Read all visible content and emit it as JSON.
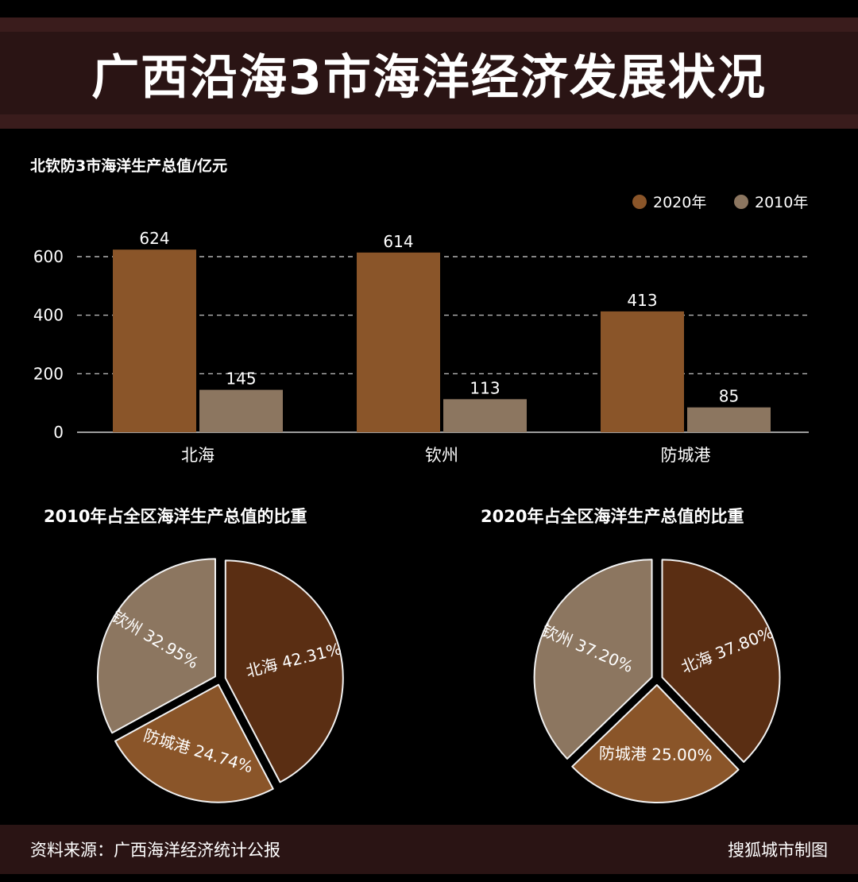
{
  "header": {
    "title": "广西沿海3市海洋经济发展状况"
  },
  "bar_chart_title": "北钦防3市海洋生产总值/亿元",
  "chart_data": [
    {
      "type": "bar",
      "categories": [
        "北海",
        "钦州",
        "防城港"
      ],
      "series": [
        {
          "name": "2020年",
          "values": [
            624,
            614,
            413
          ],
          "color": "#8a5529"
        },
        {
          "name": "2010年",
          "values": [
            145,
            113,
            85
          ],
          "color": "#8c7660"
        }
      ],
      "ylim": [
        0,
        680
      ],
      "yticks": [
        0,
        200,
        400,
        600
      ],
      "grid": true,
      "legend": "top-right"
    },
    {
      "type": "pie",
      "title": "2010年占全区海洋生产总值的比重",
      "slices": [
        {
          "label": "北海",
          "value": 42.31,
          "display": "42.31%",
          "color": "#5a2e13"
        },
        {
          "label": "防城港",
          "value": 24.74,
          "display": "24.74%",
          "color": "#8a5529"
        },
        {
          "label": "钦州",
          "value": 32.95,
          "display": "32.95%",
          "color": "#8c7660"
        }
      ]
    },
    {
      "type": "pie",
      "title": "2020年占全区海洋生产总值的比重",
      "slices": [
        {
          "label": "北海",
          "value": 37.8,
          "display": "37.80%",
          "color": "#5a2e13"
        },
        {
          "label": "防城港",
          "value": 25.0,
          "display": "25.00%",
          "color": "#8a5529"
        },
        {
          "label": "钦州",
          "value": 37.2,
          "display": "37.20%",
          "color": "#8c7660"
        }
      ]
    }
  ],
  "footer": {
    "source": "资料来源：广西海洋经济统计公报",
    "credit": "搜狐城市制图"
  }
}
